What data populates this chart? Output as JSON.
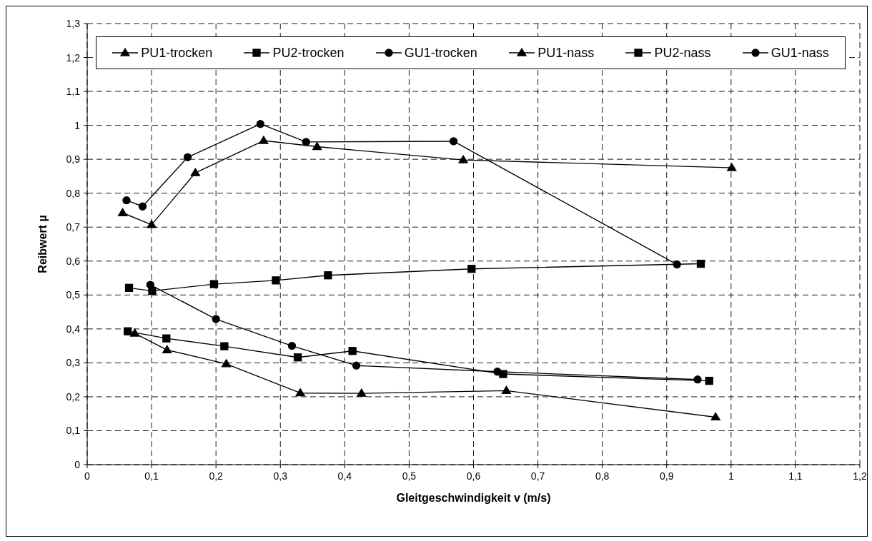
{
  "chart_data": {
    "type": "line",
    "xlabel": "Gleitgeschwindigkeit v (m/s)",
    "ylabel": "Reibwert µ",
    "xlim": [
      0,
      1.2
    ],
    "xticks": [
      0,
      {
        "value": 0.1,
        "label": "0,1"
      },
      {
        "value": 0.2,
        "label": "0,2"
      },
      {
        "value": 0.3,
        "label": "0,3"
      },
      {
        "value": 0.4,
        "label": "0,4"
      },
      {
        "value": 0.5,
        "label": "0,5"
      },
      {
        "value": 0.6,
        "label": "0,6"
      },
      {
        "value": 0.7,
        "label": "0,7"
      },
      {
        "value": 0.8,
        "label": "0,8"
      },
      {
        "value": 0.9,
        "label": "0,9"
      },
      1,
      {
        "value": 1.1,
        "label": "1,1"
      },
      {
        "value": 1.2,
        "label": "1,2"
      }
    ],
    "ylim": [
      0,
      1.3
    ],
    "yticks": [
      0,
      {
        "value": 0.1,
        "label": "0,1"
      },
      {
        "value": 0.2,
        "label": "0,2"
      },
      {
        "value": 0.3,
        "label": "0,3"
      },
      {
        "value": 0.4,
        "label": "0,4"
      },
      {
        "value": 0.5,
        "label": "0,5"
      },
      {
        "value": 0.6,
        "label": "0,6"
      },
      {
        "value": 0.7,
        "label": "0,7"
      },
      {
        "value": 0.8,
        "label": "0,8"
      },
      {
        "value": 0.9,
        "label": "0,9"
      },
      1,
      {
        "value": 1.1,
        "label": "1,1"
      },
      {
        "value": 1.2,
        "label": "1,2"
      },
      {
        "value": 1.3,
        "label": "1,3"
      }
    ],
    "grid": true,
    "legend": "top",
    "line_style": "solid",
    "series": [
      {
        "name": "PU1-trocken",
        "color": "#000000",
        "marker": "triangle",
        "x": [
          0.055,
          0.1,
          0.168,
          0.274,
          0.357,
          0.584,
          1.001
        ],
        "values": [
          0.742,
          0.707,
          0.86,
          0.955,
          0.937,
          0.898,
          0.875
        ]
      },
      {
        "name": "PU2-trocken",
        "color": "#000000",
        "marker": "square",
        "x": [
          0.065,
          0.101,
          0.197,
          0.293,
          0.374,
          0.597,
          0.953
        ],
        "values": [
          0.521,
          0.512,
          0.532,
          0.543,
          0.558,
          0.577,
          0.592
        ]
      },
      {
        "name": "GU1-trocken",
        "color": "#000000",
        "marker": "circle",
        "x": [
          0.061,
          0.086,
          0.156,
          0.269,
          0.34,
          0.569,
          0.916
        ],
        "values": [
          0.779,
          0.761,
          0.906,
          1.004,
          0.951,
          0.953,
          0.59
        ]
      },
      {
        "name": "PU1-nass",
        "color": "#000000",
        "marker": "triangle",
        "x": [
          0.074,
          0.124,
          0.216,
          0.331,
          0.426,
          0.651,
          0.976
        ],
        "values": [
          0.387,
          0.338,
          0.297,
          0.211,
          0.21,
          0.218,
          0.14
        ]
      },
      {
        "name": "PU2-nass",
        "color": "#000000",
        "marker": "square",
        "x": [
          0.063,
          0.123,
          0.213,
          0.327,
          0.412,
          0.646,
          0.966
        ],
        "values": [
          0.393,
          0.372,
          0.349,
          0.316,
          0.335,
          0.267,
          0.247
        ]
      },
      {
        "name": "GU1-nass",
        "color": "#000000",
        "marker": "circle",
        "x": [
          0.098,
          0.2,
          0.318,
          0.418,
          0.637,
          0.948
        ],
        "values": [
          0.53,
          0.429,
          0.35,
          0.292,
          0.274,
          0.251
        ]
      }
    ]
  }
}
